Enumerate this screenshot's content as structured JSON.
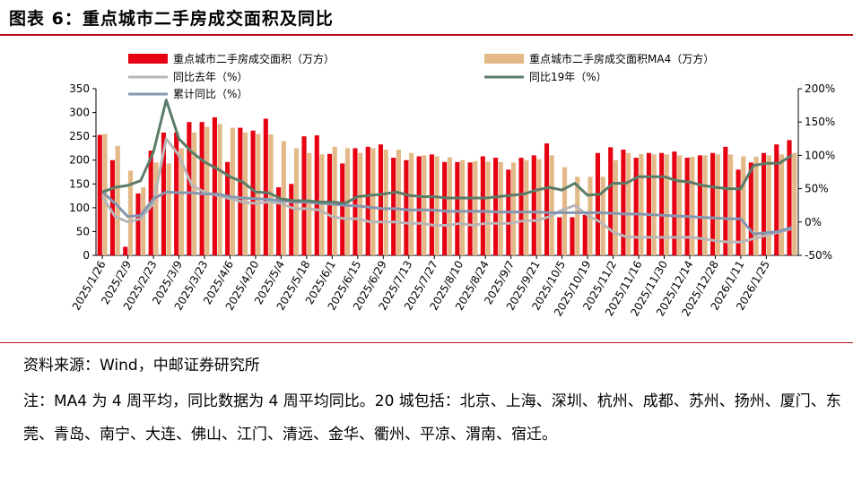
{
  "title": "图表 6：重点城市二手房成交面积及同比",
  "source": "资料来源：Wind，中邮证券研究所",
  "note": "注：MA4 为 4 周平均，同比数据为 4 周平均同比。20 城包括：北京、上海、深圳、杭州、成都、苏州、扬州、厦门、东莞、青岛、南宁、大连、佛山、江门、清远、金华、衢州、平凉、渭南、宿迁。",
  "colors": {
    "bar": "#e60012",
    "ma4": "#e3b987",
    "yoy_ly": "#b7b7b7",
    "yoy_19": "#5b7c68",
    "cum": "#8497b0",
    "rule": "#b5121b"
  },
  "chart_data": {
    "type": "bar",
    "title": "重点城市二手房成交面积及同比",
    "ylim_left": [
      0,
      350
    ],
    "ylim_right": [
      -50,
      200
    ],
    "left_ticks": [
      "0",
      "50",
      "100",
      "150",
      "200",
      "250",
      "300",
      "350"
    ],
    "right_ticks": [
      "-50%",
      "0%",
      "50%",
      "100%",
      "150%",
      "200%"
    ],
    "x_tick_labels": [
      "2025/1/26",
      "2025/2/9",
      "2025/2/23",
      "2025/3/9",
      "2025/3/23",
      "2025/4/6",
      "2025/4/20",
      "2025/5/4",
      "2025/5/18",
      "2025/6/1",
      "2025/6/15",
      "2025/6/29",
      "2025/7/13",
      "2025/7/27",
      "2025/8/10",
      "2025/8/24",
      "2025/9/7",
      "2025/9/21",
      "2025/10/5",
      "2025/10/19",
      "2025/11/2",
      "2025/11/16",
      "2025/11/30",
      "2025/12/14",
      "2025/12/28",
      "2026/1/11",
      "2026/1/25"
    ],
    "series": [
      {
        "name": "重点城市二手房成交面积（万方）",
        "kind": "bar",
        "axis": "left",
        "values": [
          253,
          200,
          18,
          130,
          220,
          258,
          258,
          280,
          280,
          290,
          196,
          268,
          262,
          287,
          143,
          150,
          250,
          252,
          213,
          193,
          225,
          228,
          233,
          205,
          200,
          208,
          212,
          196,
          196,
          195,
          208,
          205,
          180,
          205,
          210,
          235,
          80,
          80,
          85,
          215,
          227,
          222,
          205,
          215,
          215,
          218,
          205,
          210,
          215,
          228,
          180,
          195,
          215,
          233,
          242
        ]
      },
      {
        "name": "重点城市二手房成交面积MA4（万方）",
        "kind": "bar",
        "axis": "left",
        "values": [
          255,
          230,
          178,
          143,
          195,
          193,
          225,
          258,
          270,
          276,
          268,
          258,
          255,
          254,
          240,
          225,
          215,
          212,
          228,
          225,
          215,
          225,
          222,
          222,
          215,
          210,
          208,
          206,
          200,
          198,
          197,
          196,
          195,
          200,
          202,
          210,
          185,
          165,
          165,
          165,
          200,
          215,
          213,
          212,
          212,
          210,
          207,
          210,
          212,
          212,
          208,
          207,
          210,
          212,
          215
        ]
      },
      {
        "name": "同比去年（%）",
        "kind": "line",
        "axis": "right",
        "values": [
          38,
          8,
          0,
          5,
          28,
          125,
          100,
          55,
          45,
          40,
          35,
          30,
          28,
          30,
          28,
          20,
          20,
          18,
          8,
          5,
          5,
          0,
          0,
          0,
          -2,
          -2,
          -5,
          -5,
          -2,
          -5,
          -2,
          -2,
          -2,
          2,
          2,
          8,
          18,
          25,
          10,
          0,
          -15,
          -22,
          -23,
          -23,
          -23,
          -23,
          -23,
          -25,
          -28,
          -30,
          -30,
          -25,
          -20,
          -15,
          -10
        ]
      },
      {
        "name": "同比19年（%）",
        "kind": "line",
        "axis": "right",
        "values": [
          45,
          52,
          55,
          62,
          105,
          183,
          125,
          105,
          90,
          80,
          68,
          60,
          45,
          44,
          35,
          32,
          32,
          30,
          30,
          28,
          38,
          40,
          42,
          45,
          40,
          38,
          38,
          36,
          36,
          36,
          36,
          38,
          40,
          42,
          48,
          52,
          48,
          58,
          40,
          42,
          58,
          58,
          68,
          68,
          68,
          62,
          60,
          55,
          52,
          50,
          50,
          85,
          88,
          88,
          100
        ]
      },
      {
        "name": "累计同比（%）",
        "kind": "line",
        "axis": "right",
        "values": [
          45,
          28,
          8,
          10,
          35,
          45,
          44,
          44,
          42,
          42,
          38,
          36,
          35,
          34,
          32,
          30,
          30,
          28,
          27,
          25,
          24,
          22,
          20,
          20,
          18,
          18,
          18,
          16,
          16,
          16,
          16,
          15,
          15,
          15,
          15,
          14,
          14,
          14,
          14,
          14,
          13,
          12,
          12,
          11,
          10,
          9,
          8,
          7,
          6,
          5,
          5,
          -18,
          -16,
          -14,
          -8
        ]
      }
    ],
    "legend": [
      "重点城市二手房成交面积（万方）",
      "重点城市二手房成交面积MA4（万方）",
      "同比去年（%）",
      "同比19年（%）",
      "累计同比（%）"
    ],
    "legend_position": "top"
  }
}
